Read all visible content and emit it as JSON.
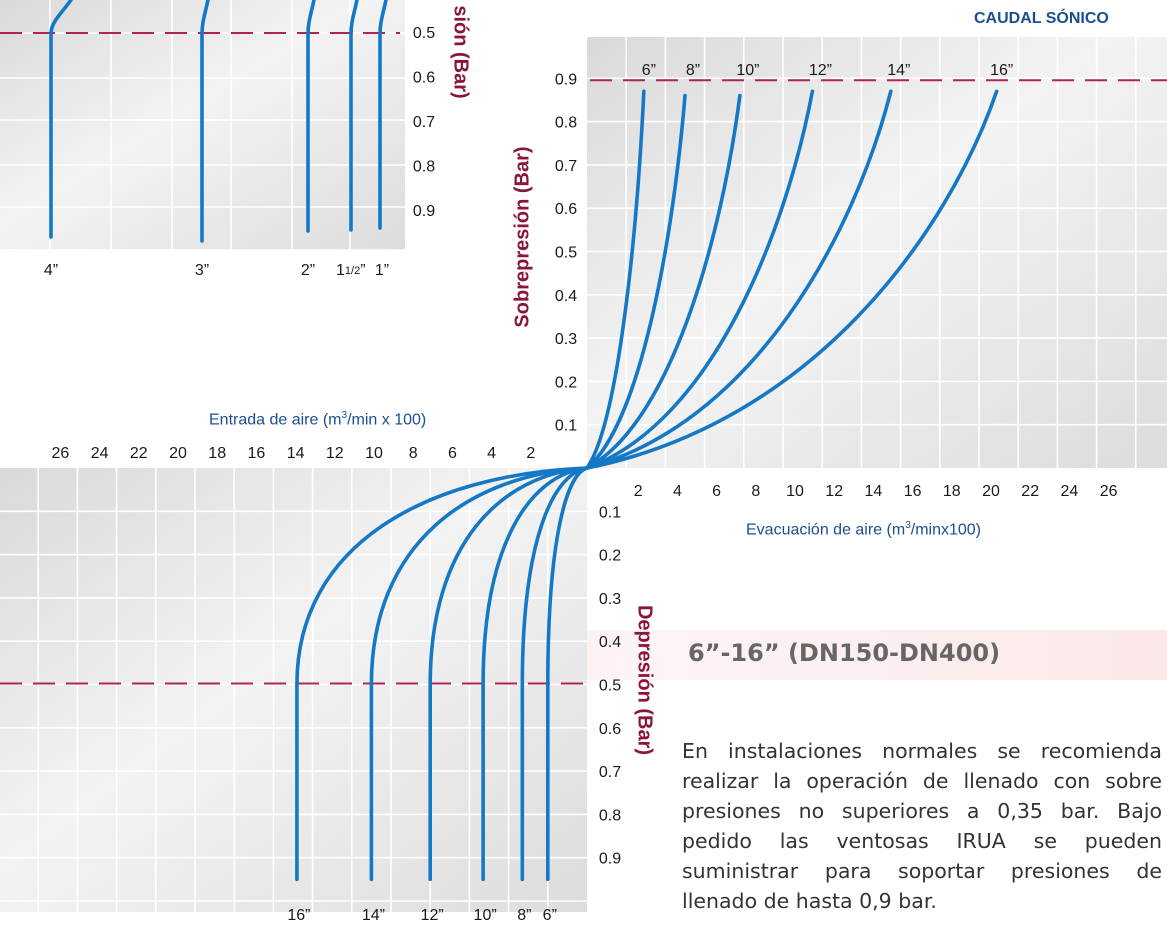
{
  "header": {
    "corner_label": "CAUDAL SÓNICO"
  },
  "section": {
    "title": "6”-16” (DN150-DN400)",
    "paragraph": "En instalaciones normales se recomienda realizar la operación de llenado con sobre presiones no superiores a 0,35 bar. Bajo pedido las ventosas IRUA se pueden suministrar para soportar presiones de llenado de hasta 0,9 bar."
  },
  "colors": {
    "curve": "#1478c4",
    "dashed_ref": "#b0225a",
    "axis_title": "#8a1538",
    "axis_label_blue": "#1b4f8f",
    "grid_bg": "#e6e6e6",
    "grid_line": "#ffffff"
  },
  "chart_data": [
    {
      "type": "line",
      "quadrant": "top-right",
      "title": "CAUDAL SÓNICO",
      "xlabel": "Evacuación de aire (m3/minx100)",
      "ylabel": "Sobrepresión (Bar)",
      "x_ticks": [
        "2",
        "4",
        "6",
        "8",
        "10",
        "12",
        "14",
        "16",
        "18",
        "20",
        "22",
        "24",
        "26"
      ],
      "y_ticks": [
        "0.1",
        "0.2",
        "0.3",
        "0.4",
        "0.5",
        "0.6",
        "0.7",
        "0.8",
        "0.9"
      ],
      "xlim": [
        0,
        28
      ],
      "ylim": [
        0,
        1.0
      ],
      "grid": true,
      "reference_line": {
        "y": 0.9,
        "style": "dashed"
      },
      "series": [
        {
          "name": "6”",
          "end": [
            2.9,
            0.87
          ]
        },
        {
          "name": "8”",
          "end": [
            5.0,
            0.86
          ]
        },
        {
          "name": "10”",
          "end": [
            7.8,
            0.86
          ]
        },
        {
          "name": "12”",
          "end": [
            11.5,
            0.87
          ]
        },
        {
          "name": "14”",
          "end": [
            15.5,
            0.87
          ]
        },
        {
          "name": "16”",
          "end": [
            20.9,
            0.87
          ]
        }
      ]
    },
    {
      "type": "line",
      "quadrant": "bottom-left",
      "xlabel": "Entrada de aire (m3/min x 100)",
      "ylabel": "Depresión (Bar)",
      "x_ticks": [
        "26",
        "24",
        "22",
        "20",
        "18",
        "16",
        "14",
        "12",
        "10",
        "8",
        "6",
        "4",
        "2"
      ],
      "y_ticks": [
        "0.1",
        "0.2",
        "0.3",
        "0.4",
        "0.5",
        "0.6",
        "0.7",
        "0.8",
        "0.9"
      ],
      "xlim": [
        0,
        28
      ],
      "ylim": [
        0,
        1.0
      ],
      "grid": true,
      "reference_line": {
        "y": 0.5,
        "style": "dashed"
      },
      "series": [
        {
          "name": "16”",
          "knee": [
            14.8,
            0.5
          ],
          "end_y": 0.95
        },
        {
          "name": "14”",
          "knee": [
            11.0,
            0.5
          ],
          "end_y": 0.95
        },
        {
          "name": "12”",
          "knee": [
            8.0,
            0.5
          ],
          "end_y": 0.95
        },
        {
          "name": "10”",
          "knee": [
            5.3,
            0.5
          ],
          "end_y": 0.95
        },
        {
          "name": "8”",
          "knee": [
            3.3,
            0.5
          ],
          "end_y": 0.95
        },
        {
          "name": "6”",
          "knee": [
            2.0,
            0.5
          ],
          "end_y": 0.95
        }
      ]
    },
    {
      "type": "line",
      "quadrant": "top-left-partial",
      "ylabel_fragment": "sión (Bar)",
      "y_ticks": [
        "0.5",
        "0.6",
        "0.7",
        "0.8",
        "0.9"
      ],
      "reference_line": {
        "y": 0.5,
        "style": "dashed"
      },
      "series": [
        {
          "name": "4”"
        },
        {
          "name": "3”"
        },
        {
          "name": "2”"
        },
        {
          "name": "11/2”",
          "label_main": "1",
          "label_sup": "1/2",
          "label_tail": "”"
        },
        {
          "name": "1”"
        }
      ]
    }
  ]
}
